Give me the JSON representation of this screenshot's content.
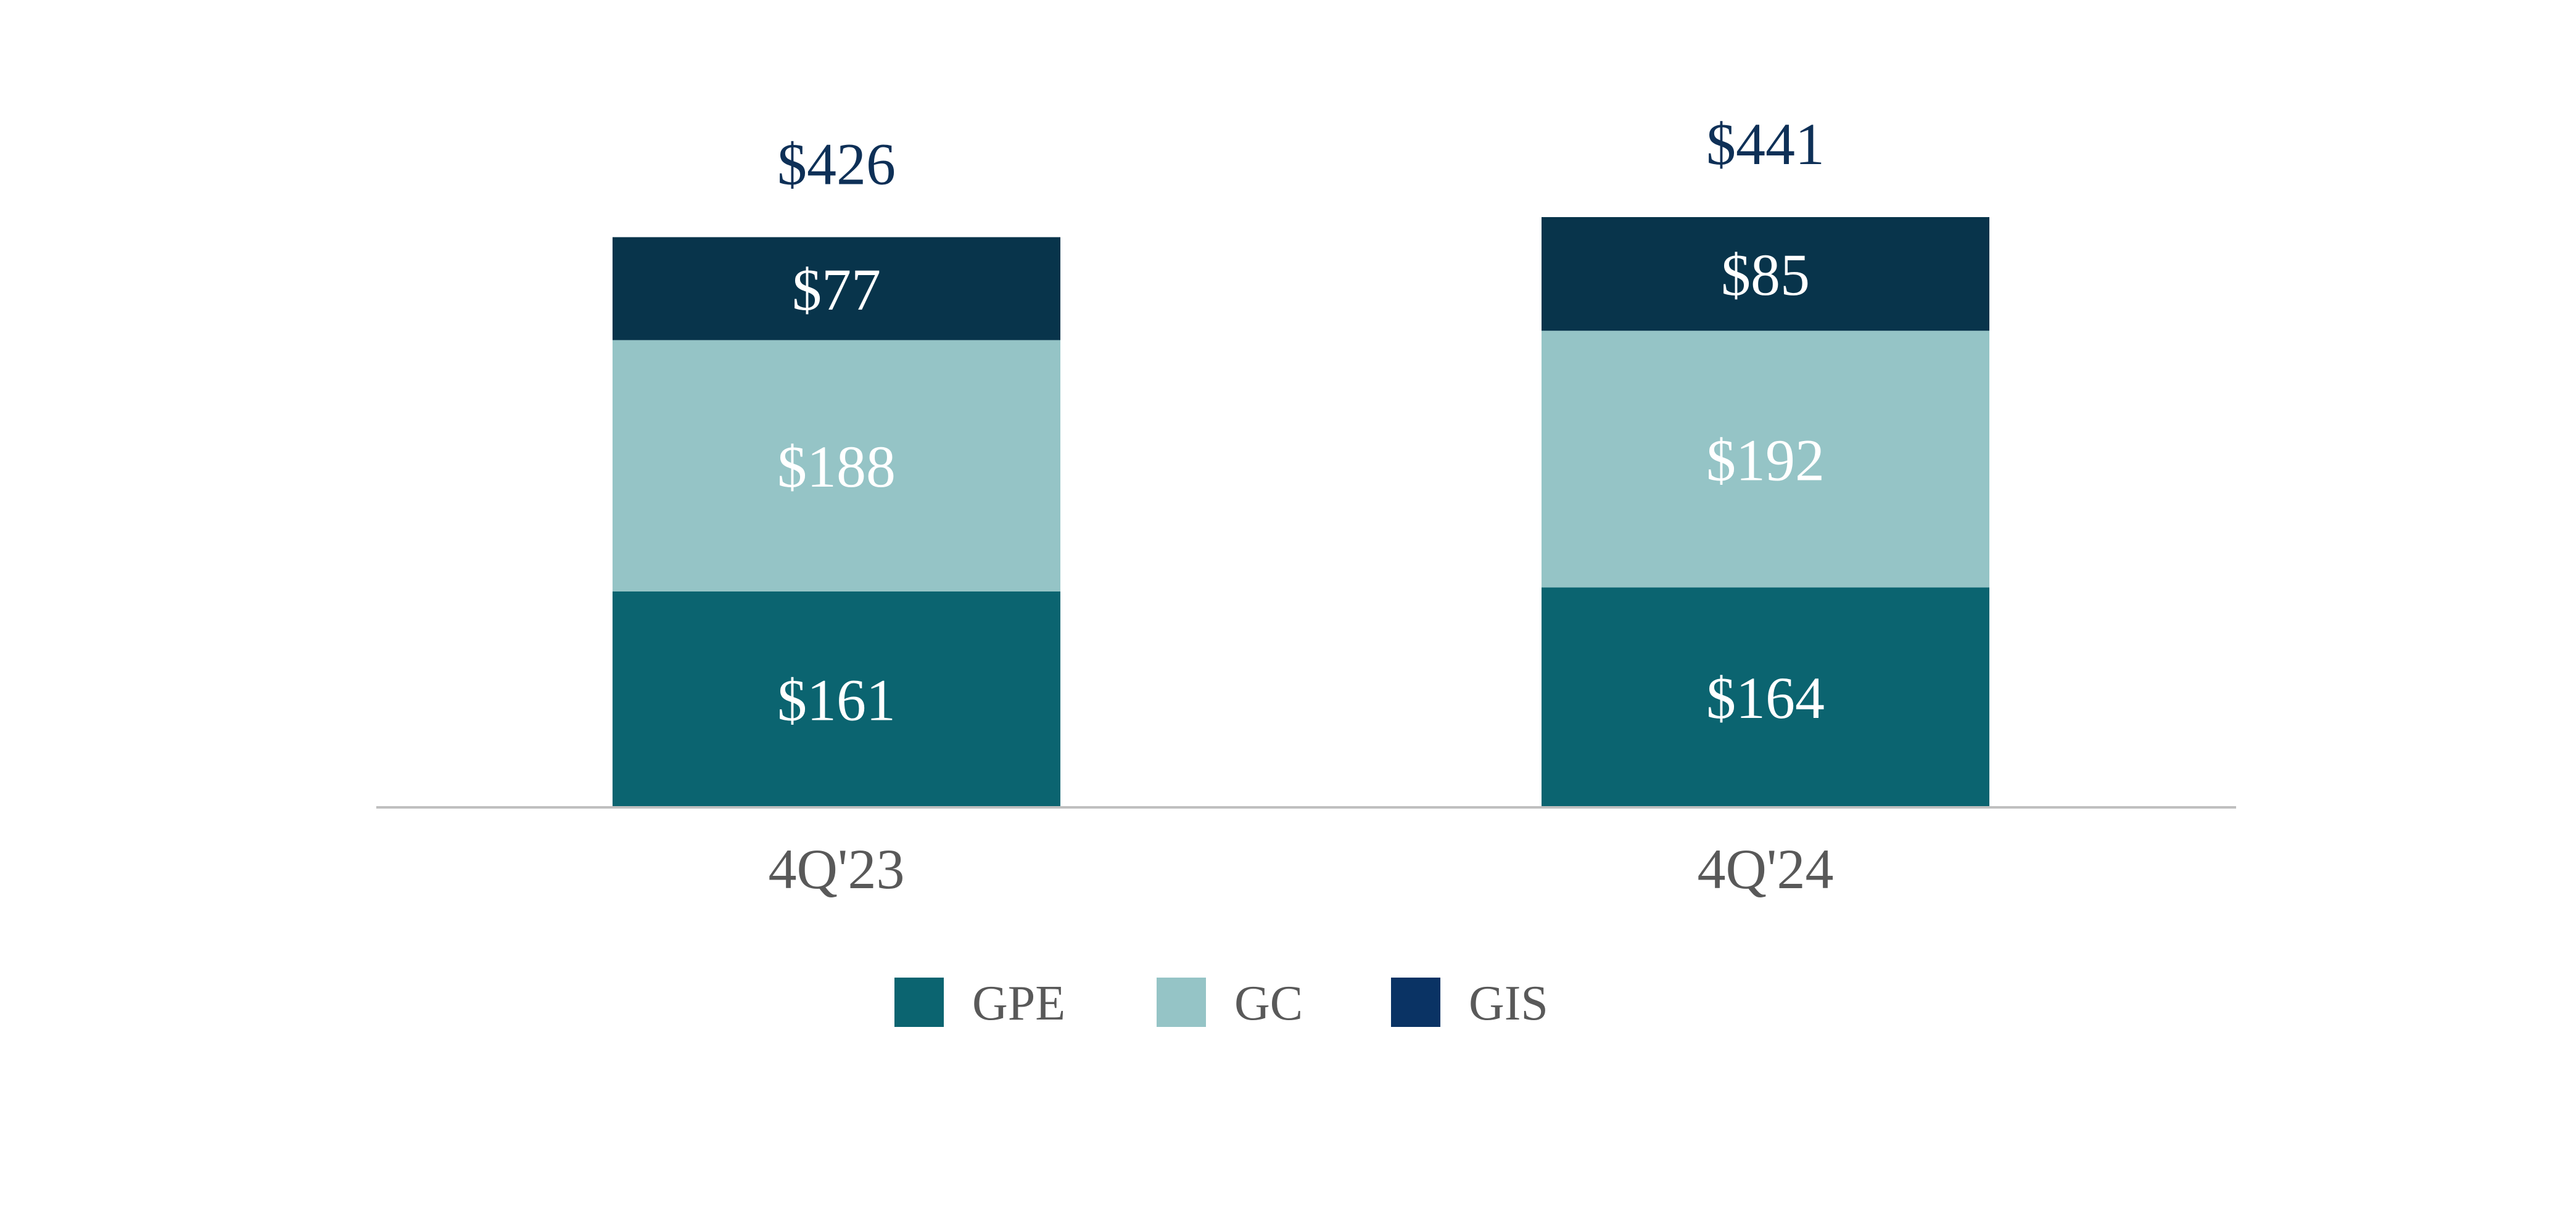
{
  "chart_data": {
    "type": "bar",
    "stacked": true,
    "categories": [
      "4Q'23",
      "4Q'24"
    ],
    "series": [
      {
        "name": "GPE",
        "values": [
          161,
          164
        ],
        "labels": [
          "$161",
          "$164"
        ],
        "color": "#0B6470"
      },
      {
        "name": "GC",
        "values": [
          188,
          192
        ],
        "labels": [
          "$188",
          "$192"
        ],
        "color": "#95C4C6"
      },
      {
        "name": "GIS",
        "values": [
          77,
          85
        ],
        "labels": [
          "$77",
          "$85"
        ],
        "color": "#08344B"
      }
    ],
    "totals": [
      426,
      441
    ],
    "total_labels": [
      "$426",
      "$441"
    ],
    "title": "",
    "xlabel": "",
    "ylabel": "",
    "ylim": [
      0,
      441
    ],
    "grid": false,
    "legend": "bottom-center",
    "legend_colors": {
      "GPE": "#0B6470",
      "GC": "#95C4C6",
      "GIS": "#0A3364"
    },
    "colors": {
      "segment_label": "#FFFFFF",
      "total_label": "#0E3057",
      "category_label": "#595959",
      "legend_label": "#595959",
      "baseline": "#BFBFBF"
    }
  }
}
